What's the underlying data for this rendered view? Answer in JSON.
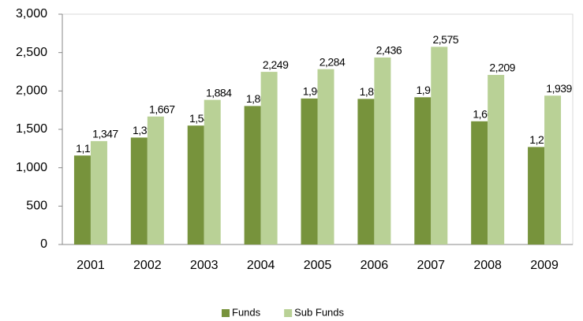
{
  "chart_data": {
    "type": "bar",
    "categories": [
      "2001",
      "2002",
      "2003",
      "2004",
      "2005",
      "2006",
      "2007",
      "2008",
      "2009"
    ],
    "series": [
      {
        "name": "Funds",
        "color": "#77933c",
        "values": [
          1159,
          1393,
          1549,
          1804,
          1902,
          1897,
          1918,
          1605,
          1270
        ],
        "value_labels": [
          "1,159",
          "1,393",
          "1,549",
          "1,804",
          "1,902",
          "1,897",
          "1,918",
          "1,605",
          "1,270"
        ]
      },
      {
        "name": "Sub Funds",
        "color": "#b9d196",
        "values": [
          1347,
          1667,
          1884,
          2249,
          2284,
          2436,
          2575,
          2209,
          1939
        ],
        "value_labels": [
          "1,347",
          "1,667",
          "1,884",
          "2,249",
          "2,284",
          "2,436",
          "2,575",
          "2,209",
          "1,939"
        ]
      }
    ],
    "ylim": [
      0,
      3000
    ],
    "yticks": [
      0,
      500,
      {
        "value": 1000,
        "label": "1,000"
      },
      {
        "value": 1500,
        "label": "1,500"
      },
      {
        "value": 2000,
        "label": "2,000"
      },
      {
        "value": 2500,
        "label": "2,500"
      },
      {
        "value": 3000,
        "label": "3,000"
      }
    ],
    "legend": "bottom"
  }
}
